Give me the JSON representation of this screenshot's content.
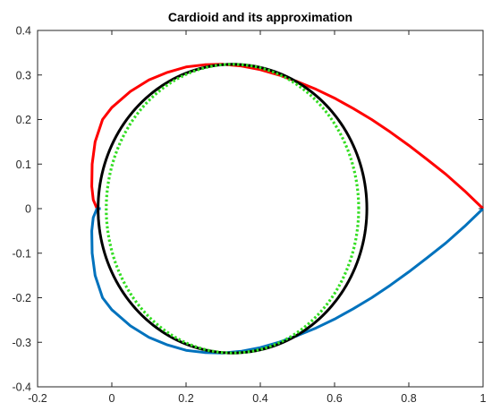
{
  "chart_data": {
    "type": "line",
    "title": "Cardioid and its approximation",
    "xlabel": "",
    "ylabel": "",
    "xlim": [
      -0.2,
      1.0
    ],
    "ylim": [
      -0.4,
      0.4
    ],
    "grid": false,
    "xticks": [
      -0.2,
      0,
      0.2,
      0.4,
      0.6,
      0.8,
      1
    ],
    "xtick_labels": [
      "-0.2",
      "0",
      "0.2",
      "0.4",
      "0.6",
      "0.8",
      "1"
    ],
    "yticks": [
      -0.4,
      -0.3,
      -0.2,
      -0.1,
      0,
      0.1,
      0.2,
      0.3,
      0.4
    ],
    "ytick_labels": [
      "-0.4",
      "-0.3",
      "-0.2",
      "-0.1",
      "0",
      "0.1",
      "0.2",
      "0.3",
      "0.4"
    ],
    "series": [
      {
        "color": "#ff0000",
        "style": "solid",
        "points": [
          [
            1.0,
            0.0
          ],
          [
            0.95,
            0.04
          ],
          [
            0.9,
            0.077
          ],
          [
            0.85,
            0.11
          ],
          [
            0.8,
            0.142
          ],
          [
            0.75,
            0.172
          ],
          [
            0.7,
            0.2
          ],
          [
            0.65,
            0.225
          ],
          [
            0.6,
            0.248
          ],
          [
            0.55,
            0.268
          ],
          [
            0.5,
            0.285
          ],
          [
            0.45,
            0.3
          ],
          [
            0.4,
            0.312
          ],
          [
            0.35,
            0.32
          ],
          [
            0.3,
            0.324
          ],
          [
            0.25,
            0.323
          ],
          [
            0.2,
            0.318
          ],
          [
            0.15,
            0.306
          ],
          [
            0.1,
            0.289
          ],
          [
            0.05,
            0.263
          ],
          [
            0.0,
            0.227
          ],
          [
            -0.025,
            0.2
          ],
          [
            -0.045,
            0.15
          ],
          [
            -0.053,
            0.1
          ],
          [
            -0.054,
            0.05
          ],
          [
            -0.05,
            0.02
          ],
          [
            -0.04,
            0.0
          ]
        ]
      },
      {
        "color": "#0072bd",
        "style": "solid",
        "points": [
          [
            1.0,
            0.0
          ],
          [
            0.95,
            -0.04
          ],
          [
            0.9,
            -0.077
          ],
          [
            0.85,
            -0.11
          ],
          [
            0.8,
            -0.142
          ],
          [
            0.75,
            -0.172
          ],
          [
            0.7,
            -0.2
          ],
          [
            0.65,
            -0.225
          ],
          [
            0.6,
            -0.248
          ],
          [
            0.55,
            -0.268
          ],
          [
            0.5,
            -0.285
          ],
          [
            0.45,
            -0.3
          ],
          [
            0.4,
            -0.312
          ],
          [
            0.35,
            -0.32
          ],
          [
            0.3,
            -0.324
          ],
          [
            0.25,
            -0.323
          ],
          [
            0.2,
            -0.318
          ],
          [
            0.15,
            -0.306
          ],
          [
            0.1,
            -0.289
          ],
          [
            0.05,
            -0.263
          ],
          [
            0.0,
            -0.227
          ],
          [
            -0.025,
            -0.2
          ],
          [
            -0.045,
            -0.15
          ],
          [
            -0.053,
            -0.1
          ],
          [
            -0.054,
            -0.05
          ],
          [
            -0.05,
            -0.02
          ],
          [
            -0.04,
            0.0
          ],
          [
            -0.03,
            0.0
          ]
        ]
      },
      {
        "color": "#000000",
        "style": "solid",
        "ellipse": {
          "cx": 0.325,
          "cy": 0.0,
          "rx": 0.362,
          "ry": 0.324
        }
      },
      {
        "color": "#33dd22",
        "style": "dotted",
        "ellipse": {
          "cx": 0.325,
          "cy": 0.0,
          "rx": 0.34,
          "ry": 0.324
        }
      }
    ]
  }
}
